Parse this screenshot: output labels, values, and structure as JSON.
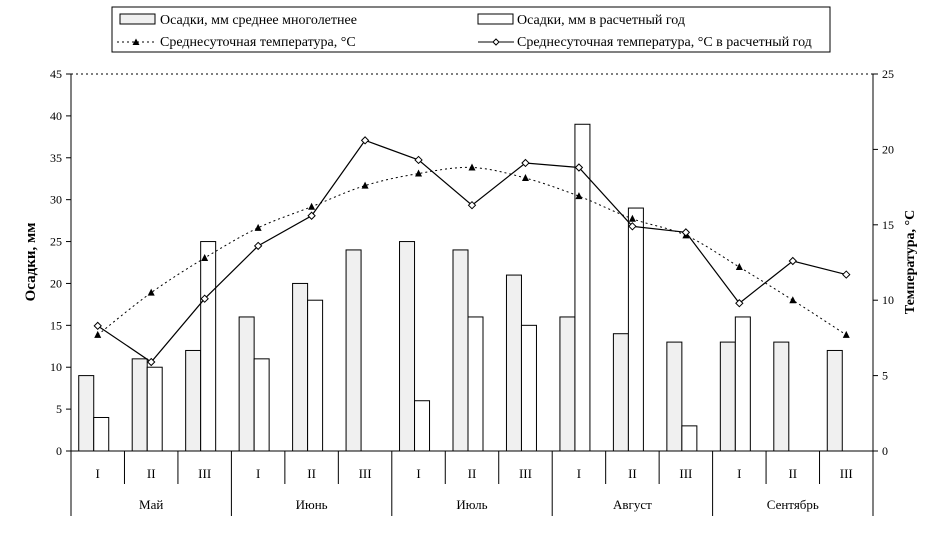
{
  "chart_data": {
    "type": "bar",
    "months": [
      "Май",
      "Июнь",
      "Июль",
      "Август",
      "Сентябрь"
    ],
    "decades": [
      "I",
      "II",
      "III"
    ],
    "categories": [
      "I",
      "II",
      "III",
      "I",
      "II",
      "III",
      "I",
      "II",
      "III",
      "I",
      "II",
      "III",
      "I",
      "II",
      "III"
    ],
    "ylabel": "Осадки, мм",
    "y2label": "Температура, °С",
    "ylim": [
      0,
      45
    ],
    "y2lim": [
      0,
      25
    ],
    "yticks": [
      0,
      5,
      10,
      15,
      20,
      25,
      30,
      35,
      40,
      45
    ],
    "y2ticks": [
      0,
      5,
      10,
      15,
      20,
      25
    ],
    "legend_position": "top",
    "grid": false,
    "series": [
      {
        "name": "Осадки, мм среднее многолетнее",
        "kind": "bar",
        "color": "#f0f0f0",
        "axis": "left",
        "values": [
          9,
          11,
          12,
          16,
          20,
          24,
          25,
          24,
          21,
          16,
          14,
          13,
          13,
          13,
          12
        ]
      },
      {
        "name": "Осадки, мм в расчетный год",
        "kind": "bar",
        "color": "#ffffff",
        "axis": "left",
        "values": [
          4,
          10,
          25,
          11,
          18,
          0,
          6,
          16,
          15,
          39,
          29,
          3,
          16,
          0,
          0
        ]
      },
      {
        "name": "Среднесуточная температура, °С",
        "kind": "line",
        "style": "dotted",
        "marker": "triangle",
        "axis": "right",
        "values": [
          7.7,
          10.5,
          12.8,
          14.8,
          16.2,
          17.6,
          18.4,
          18.8,
          18.1,
          16.9,
          15.4,
          14.3,
          12.2,
          10.0,
          7.7
        ]
      },
      {
        "name": "Среднесуточная температура, °С в расчетный год",
        "kind": "line",
        "style": "solid",
        "marker": "diamond",
        "axis": "right",
        "values": [
          8.3,
          5.9,
          10.1,
          13.6,
          15.6,
          20.6,
          19.3,
          16.3,
          19.1,
          18.8,
          14.9,
          14.5,
          9.8,
          12.6,
          11.7
        ]
      }
    ]
  }
}
